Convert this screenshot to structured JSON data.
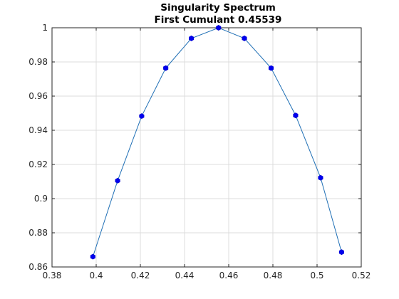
{
  "chart_data": {
    "type": "line",
    "title": "Singularity Spectrum",
    "subtitle": "First Cumulant 0.45539",
    "xlabel": "",
    "ylabel": "",
    "xlim": [
      0.38,
      0.52
    ],
    "ylim": [
      0.86,
      1.0
    ],
    "xticks": [
      0.38,
      0.4,
      0.42,
      0.44,
      0.46,
      0.48,
      0.5,
      0.52
    ],
    "yticks": [
      0.86,
      0.88,
      0.9,
      0.92,
      0.94,
      0.96,
      0.98,
      1.0
    ],
    "xtick_labels": [
      "0.38",
      "0.4",
      "0.42",
      "0.44",
      "0.46",
      "0.48",
      "0.5",
      "0.52"
    ],
    "ytick_labels": [
      "0.86",
      "0.88",
      "0.9",
      "0.92",
      "0.94",
      "0.96",
      "0.98",
      "1"
    ],
    "grid": true,
    "series": [
      {
        "x": [
          0.3985,
          0.4097,
          0.4206,
          0.4315,
          0.4431,
          0.4554,
          0.4671,
          0.4792,
          0.4903,
          0.5016,
          0.5111
        ],
        "y": [
          0.866,
          0.9105,
          0.9483,
          0.9764,
          0.9938,
          1.0,
          0.9938,
          0.9764,
          0.9487,
          0.9122,
          0.8687
        ],
        "line_color": "#1f6fb5",
        "marker_color": "#0000ee"
      }
    ]
  }
}
